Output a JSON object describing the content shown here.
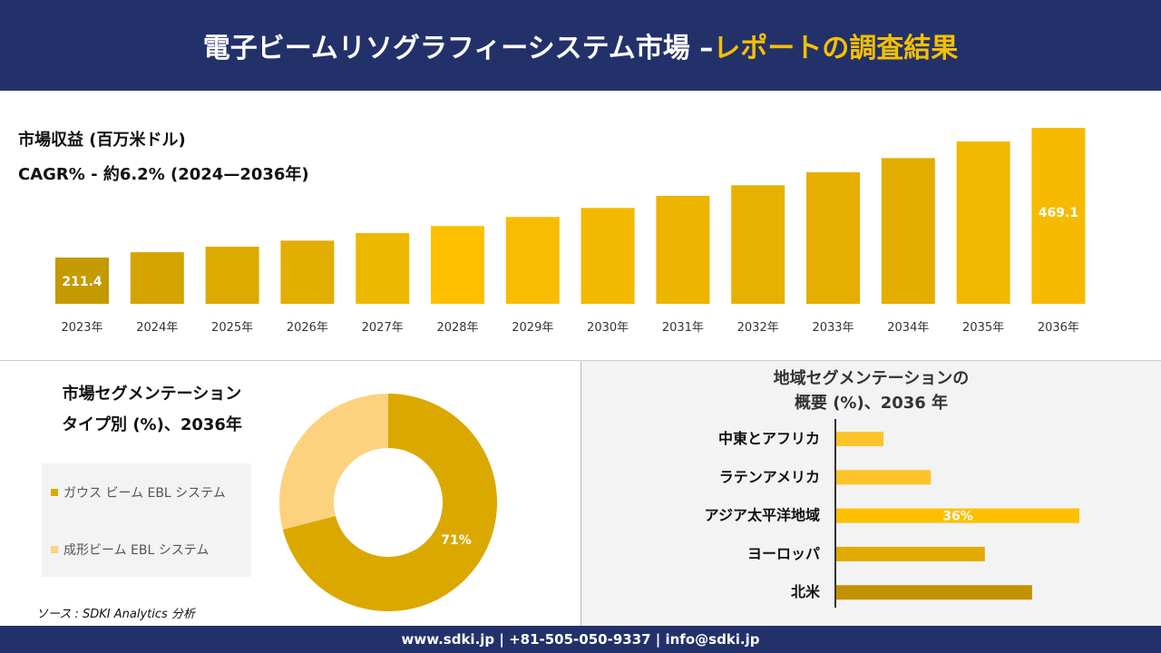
{
  "header": {
    "title_main": "電子ビームリソグラフィーシステム市場 –",
    "title_accent": "レポートの調査結果"
  },
  "revenue": {
    "title": "市場収益 (百万米ドル)",
    "cagr": "CAGR% - 約6.2% (2024—2036年)"
  },
  "chart_data": [
    {
      "type": "bar",
      "title": "市場収益 (百万米ドル)",
      "categories": [
        "2023年",
        "2024年",
        "2025年",
        "2026年",
        "2027年",
        "2028年",
        "2029年",
        "2030年",
        "2031年",
        "2032年",
        "2033年",
        "2034年",
        "2035年",
        "2036年"
      ],
      "values": [
        211.4,
        222,
        233,
        245,
        260,
        274,
        292,
        310,
        334,
        355,
        381,
        409,
        442,
        469.1
      ],
      "data_labels": {
        "0": "211.4",
        "13": "469.1"
      },
      "colors": [
        "#c49a00",
        "#d4a400",
        "#dcaa00",
        "#e2ae00",
        "#efb800",
        "#ffc000",
        "#f8bc00",
        "#f3b800",
        "#edb400",
        "#e8b000",
        "#e6ae00",
        "#e4ad00",
        "#f2b800",
        "#f6bb00"
      ]
    },
    {
      "type": "pie",
      "title": "市場セグメンテーション タイプ別 (%)、2036年",
      "labels": [
        "ガウス ビーム EBL システム",
        "成形ビーム EBL システム"
      ],
      "values": [
        71,
        29
      ],
      "data_labels": [
        "71%",
        ""
      ],
      "colors": [
        "#dba800",
        "#fcd27f"
      ]
    },
    {
      "type": "bar",
      "orientation": "horizontal",
      "title": "地域セグメンテーションの 概要 (%)、2036 年",
      "categories": [
        "中東とアフリカ",
        "ラテンアメリカ",
        "アジア太平洋地域",
        "ヨーロッパ",
        "北米"
      ],
      "values": [
        7,
        14,
        36,
        22,
        29
      ],
      "data_labels": [
        "",
        "",
        "36%",
        "",
        ""
      ],
      "colors": [
        "#fdc42a",
        "#fdc42a",
        "#fdc000",
        "#e2aa00",
        "#c49200"
      ]
    }
  ],
  "segment": {
    "title_line1": "市場セグメンテーション",
    "title_line2": "タイプ別 (%)、2036年"
  },
  "region": {
    "title_line1": "地域セグメンテーションの",
    "title_line2": "概要 (%)、2036 年"
  },
  "source": "ソース : SDKI Analytics 分析",
  "footer": "www.sdki.jp | +81-505-050-9337 | info@sdki.jp"
}
